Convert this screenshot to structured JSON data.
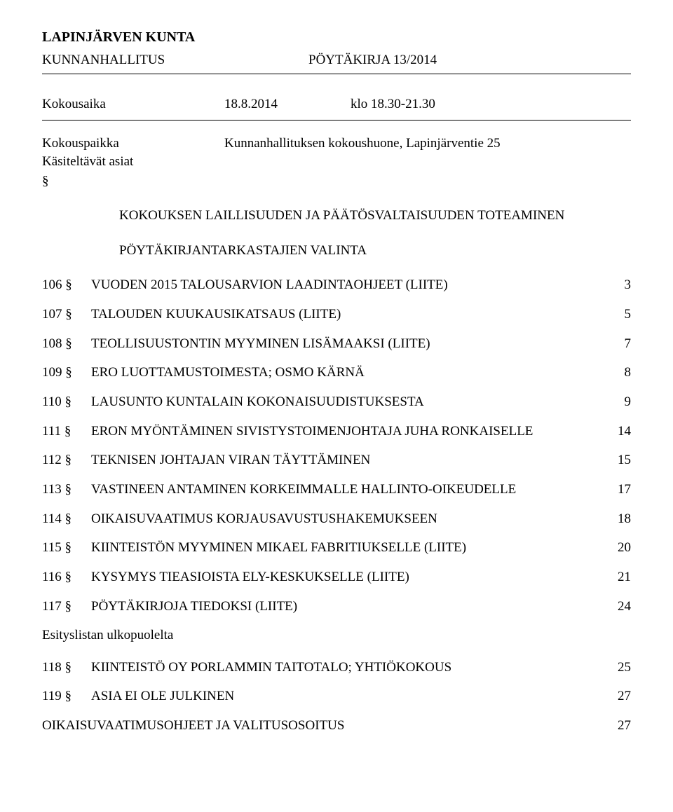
{
  "header": {
    "organization": "LAPINJÄRVEN KUNTA",
    "body": "KUNNANHALLITUS",
    "doc_label": "PÖYTÄKIRJA 13/2014"
  },
  "meeting": {
    "time_label": "Kokousaika",
    "date": "18.8.2014",
    "time": "klo 18.30-21.30",
    "venue_label": "Kokouspaikka",
    "venue": "Kunnanhallituksen kokoushuone, Lapinjärventie 25",
    "agenda_label": "Käsiteltävät asiat",
    "section_marker": "§"
  },
  "sections": {
    "legality": "KOKOUKSEN LAILLISUUDEN JA PÄÄTÖSVALTAISUUDEN TOTEAMINEN",
    "recorders": "PÖYTÄKIRJANTARKASTAJIEN VALINTA"
  },
  "toc": [
    {
      "num": "106 §",
      "title": "VUODEN 2015 TALOUSARVION LAADINTAOHJEET (LIITE)",
      "page": "3"
    },
    {
      "num": "107 §",
      "title": "TALOUDEN KUUKAUSIKATSAUS (LIITE)",
      "page": "5"
    },
    {
      "num": "108 §",
      "title": "TEOLLISUUSTONTIN MYYMINEN LISÄMAAKSI (LIITE)",
      "page": "7"
    },
    {
      "num": "109 §",
      "title": "ERO LUOTTAMUSTOIMESTA; OSMO KÄRNÄ",
      "page": "8"
    },
    {
      "num": "110 §",
      "title": "LAUSUNTO KUNTALAIN KOKONAISUUDISTUKSESTA",
      "page": "9"
    },
    {
      "num": "111 §",
      "title": "ERON MYÖNTÄMINEN SIVISTYSTOIMENJOHTAJA JUHA RONKAISELLE",
      "page": "14"
    },
    {
      "num": "112 §",
      "title": "TEKNISEN JOHTAJAN VIRAN TÄYTTÄMINEN",
      "page": "15"
    },
    {
      "num": "113 §",
      "title": "VASTINEEN ANTAMINEN KORKEIMMALLE HALLINTO-OIKEUDELLE",
      "page": "17"
    },
    {
      "num": "114 §",
      "title": "OIKAISUVAATIMUS KORJAUSAVUSTUSHAKEMUKSEEN",
      "page": "18"
    },
    {
      "num": "115 §",
      "title": "KIINTEISTÖN MYYMINEN MIKAEL FABRITIUKSELLE (LIITE)",
      "page": "20"
    },
    {
      "num": "116 §",
      "title": "KYSYMYS TIEASIOISTA ELY-KESKUKSELLE (LIITE)",
      "page": "21"
    },
    {
      "num": "117 §",
      "title": "PÖYTÄKIRJOJA TIEDOKSI (LIITE)",
      "page": "24"
    }
  ],
  "outside_heading": "Esityslistan ulkopuolelta",
  "toc_extra": [
    {
      "num": "118 §",
      "title": "KIINTEISTÖ OY PORLAMMIN TAITOTALO; YHTIÖKOKOUS",
      "page": "25"
    },
    {
      "num": "119 §",
      "title": "ASIA EI OLE JULKINEN",
      "page": "27"
    }
  ],
  "final": {
    "title": "OIKAISUVAATIMUSOHJEET JA VALITUSOSOITUS",
    "page": "27"
  },
  "style": {
    "font_family": "Times New Roman",
    "font_size_body": 19,
    "font_size_header": 20,
    "text_color": "#000000",
    "background_color": "#ffffff",
    "rule_color": "#000000"
  }
}
